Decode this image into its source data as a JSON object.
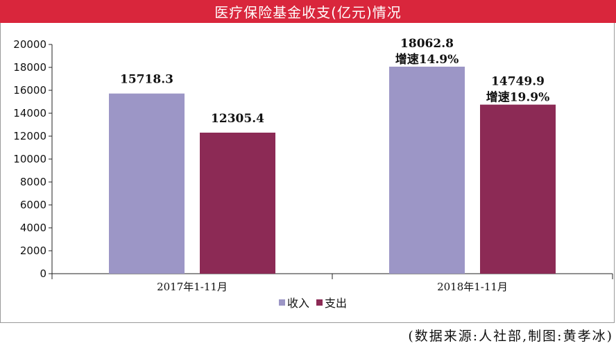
{
  "title": "医疗保险基金收支(亿元)情况",
  "source": "(数据来源:人社部,制图:黄孝冰)",
  "chart_data": {
    "type": "bar",
    "title": "医疗保险基金收支(亿元)情况",
    "categories": [
      "2017年1-11月",
      "2018年1-11月"
    ],
    "series": [
      {
        "name": "收入",
        "color": "#9c96c6",
        "values": [
          15718.3,
          18062.8
        ],
        "labels": [
          "15718.3",
          "18062.8"
        ],
        "growth": [
          "",
          "增速14.9%"
        ]
      },
      {
        "name": "支出",
        "color": "#8c2a55",
        "values": [
          12305.4,
          14749.9
        ],
        "labels": [
          "12305.4",
          "14749.9"
        ],
        "growth": [
          "",
          "增速19.9%"
        ]
      }
    ],
    "yticks": [
      "0",
      "2000",
      "4000",
      "6000",
      "8000",
      "10000",
      "12000",
      "14000",
      "16000",
      "18000",
      "20000"
    ],
    "ylim": [
      0,
      20000
    ],
    "grid": false,
    "legend_position": "bottom"
  }
}
